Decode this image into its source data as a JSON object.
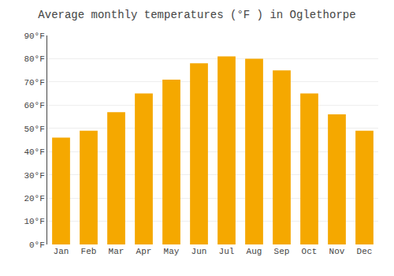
{
  "chart_data": {
    "type": "bar",
    "title": "Average monthly temperatures (°F ) in Oglethorpe",
    "categories": [
      "Jan",
      "Feb",
      "Mar",
      "Apr",
      "May",
      "Jun",
      "Jul",
      "Aug",
      "Sep",
      "Oct",
      "Nov",
      "Dec"
    ],
    "values": [
      46,
      49,
      57,
      65,
      71,
      78,
      81,
      80,
      75,
      65,
      56,
      49
    ],
    "color": "#F5A800",
    "ylim": [
      0,
      90
    ],
    "yticks": [
      {
        "value": 0,
        "label": "0°F"
      },
      {
        "value": 10,
        "label": "10°F"
      },
      {
        "value": 20,
        "label": "20°F"
      },
      {
        "value": 30,
        "label": "30°F"
      },
      {
        "value": 40,
        "label": "40°F"
      },
      {
        "value": 50,
        "label": "50°F"
      },
      {
        "value": 60,
        "label": "60°F"
      },
      {
        "value": 70,
        "label": "70°F"
      },
      {
        "value": 80,
        "label": "80°F"
      },
      {
        "value": 90,
        "label": "90°F"
      }
    ],
    "grid": true
  }
}
